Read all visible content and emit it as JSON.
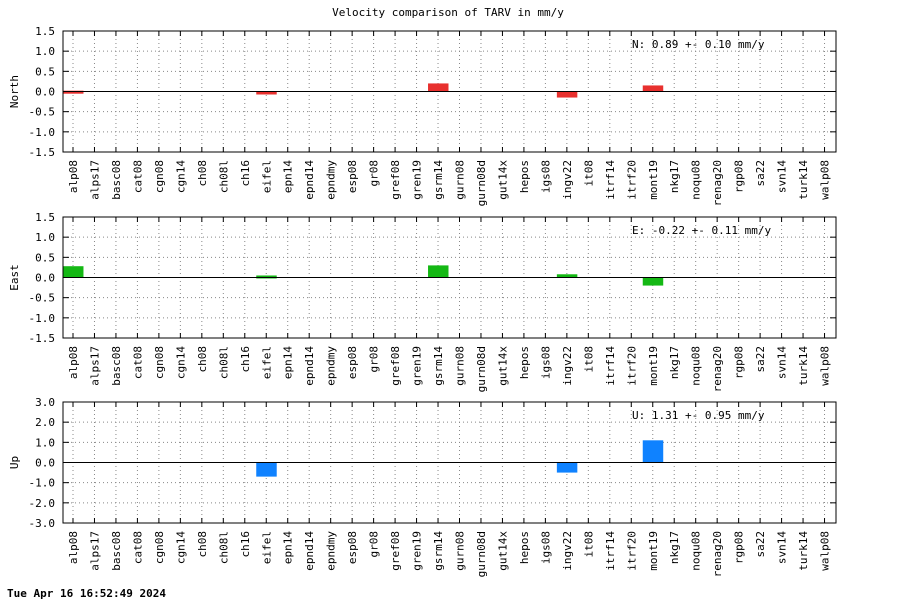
{
  "title": "Velocity comparison of TARV in mm/y",
  "timestamp": "Tue Apr 16 16:52:49 2024",
  "chart_data": [
    {
      "type": "bar",
      "ylabel": "North",
      "ylim": [
        -1.5,
        1.5
      ],
      "yticks": [
        "1.5",
        "1.0",
        "0.5",
        "0.0",
        "-0.5",
        "-1.0",
        "-1.5"
      ],
      "ytick_values": [
        1.5,
        1.0,
        0.5,
        0.0,
        -0.5,
        -1.0,
        -1.5
      ],
      "grid": true,
      "color": "#e8302e",
      "annotation": "N:   0.89 +-  0.10 mm/y",
      "categories": [
        "alp08",
        "alps17",
        "basc08",
        "cat08",
        "cgn08",
        "cgn14",
        "ch08",
        "ch08l",
        "ch16",
        "eifel",
        "epn14",
        "epnd14",
        "epndmy",
        "esp08",
        "gr08",
        "gref08",
        "gren19",
        "gsrm14",
        "gurn08",
        "gurn08d",
        "gut14x",
        "hepos",
        "igs08",
        "ingv22",
        "it08",
        "itrf14",
        "itrf20",
        "mont19",
        "nkg17",
        "noqu08",
        "renag20",
        "rgp08",
        "sa22",
        "svn14",
        "turk14",
        "walp08"
      ],
      "values": [
        0.02,
        0,
        0,
        0,
        0,
        0,
        0,
        0,
        0,
        -0.05,
        0,
        0,
        0,
        0,
        0,
        0,
        0,
        0.2,
        0,
        0,
        0,
        0,
        0,
        -0.15,
        0,
        0,
        0,
        0.15,
        0,
        0,
        0,
        0,
        0,
        0,
        0,
        0
      ]
    },
    {
      "type": "bar",
      "ylabel": "East",
      "ylim": [
        -1.5,
        1.5
      ],
      "yticks": [
        "1.5",
        "1.0",
        "0.5",
        "0.0",
        "-0.5",
        "-1.0",
        "-1.5"
      ],
      "ytick_values": [
        1.5,
        1.0,
        0.5,
        0.0,
        -0.5,
        -1.0,
        -1.5
      ],
      "grid": true,
      "color": "#14b814",
      "annotation": "E:  -0.22 +-  0.11 mm/y",
      "categories": [
        "alp08",
        "alps17",
        "basc08",
        "cat08",
        "cgn08",
        "cgn14",
        "ch08",
        "ch08l",
        "ch16",
        "eifel",
        "epn14",
        "epnd14",
        "epndmy",
        "esp08",
        "gr08",
        "gref08",
        "gren19",
        "gsrm14",
        "gurn08",
        "gurn08d",
        "gut14x",
        "hepos",
        "igs08",
        "ingv22",
        "it08",
        "itrf14",
        "itrf20",
        "mont19",
        "nkg17",
        "noqu08",
        "renag20",
        "rgp08",
        "sa22",
        "svn14",
        "turk14",
        "walp08"
      ],
      "values": [
        0.28,
        0,
        0,
        0,
        0,
        0,
        0,
        0,
        0,
        0.05,
        0,
        0,
        0,
        0,
        0,
        0,
        0,
        0.3,
        0,
        0,
        0,
        0,
        0,
        0.08,
        0,
        0,
        0,
        -0.2,
        0,
        0,
        0,
        0,
        0,
        0,
        0,
        0
      ]
    },
    {
      "type": "bar",
      "ylabel": "Up",
      "ylim": [
        -3.0,
        3.0
      ],
      "yticks": [
        "3.0",
        "2.0",
        "1.0",
        "0.0",
        "-1.0",
        "-2.0",
        "-3.0"
      ],
      "ytick_values": [
        3.0,
        2.0,
        1.0,
        0.0,
        -1.0,
        -2.0,
        -3.0
      ],
      "grid": true,
      "color": "#0f82ff",
      "annotation": "U:   1.31 +-  0.95 mm/y",
      "categories": [
        "alp08",
        "alps17",
        "basc08",
        "cat08",
        "cgn08",
        "cgn14",
        "ch08",
        "ch08l",
        "ch16",
        "eifel",
        "epn14",
        "epnd14",
        "epndmy",
        "esp08",
        "gr08",
        "gref08",
        "gren19",
        "gsrm14",
        "gurn08",
        "gurn08d",
        "gut14x",
        "hepos",
        "igs08",
        "ingv22",
        "it08",
        "itrf14",
        "itrf20",
        "mont19",
        "nkg17",
        "noqu08",
        "renag20",
        "rgp08",
        "sa22",
        "svn14",
        "turk14",
        "walp08"
      ],
      "values": [
        0,
        0,
        0,
        0,
        0,
        0,
        0,
        0,
        0,
        -0.7,
        0,
        0,
        0,
        0,
        0,
        0,
        0,
        0,
        0,
        0,
        0,
        0,
        0,
        -0.5,
        0,
        0,
        0,
        1.1,
        0,
        0,
        0,
        0,
        0,
        0,
        0,
        0
      ]
    }
  ]
}
